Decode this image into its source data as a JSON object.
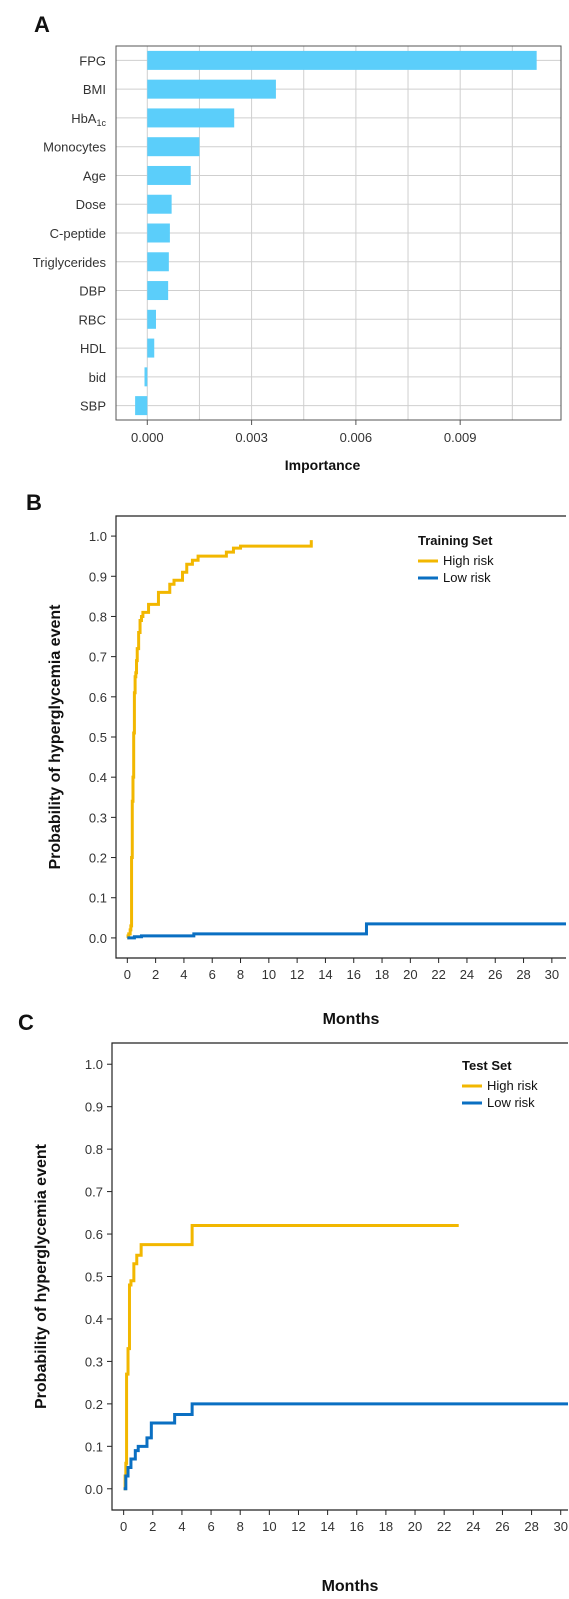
{
  "colors": {
    "bar": "#5BCEFA",
    "high_risk": "#F2B700",
    "low_risk": "#0A6FC2",
    "grid": "#cfcfcf",
    "axis": "#222222"
  },
  "chart_data": [
    {
      "panel": "A",
      "type": "bar",
      "orientation": "horizontal",
      "categories": [
        "FPG",
        "BMI",
        "HbA1c",
        "Monocytes",
        "Age",
        "Dose",
        "C-peptide",
        "Triglycerides",
        "DBP",
        "RBC",
        "HDL",
        "bid",
        "SBP"
      ],
      "category_labels": [
        {
          "main": "FPG",
          "sub": ""
        },
        {
          "main": "BMI",
          "sub": ""
        },
        {
          "main": "HbA",
          "sub": "1c"
        },
        {
          "main": "Monocytes",
          "sub": ""
        },
        {
          "main": "Age",
          "sub": ""
        },
        {
          "main": "Dose",
          "sub": ""
        },
        {
          "main": "C-peptide",
          "sub": ""
        },
        {
          "main": "Triglycerides",
          "sub": ""
        },
        {
          "main": "DBP",
          "sub": ""
        },
        {
          "main": "RBC",
          "sub": ""
        },
        {
          "main": "HDL",
          "sub": ""
        },
        {
          "main": "bid",
          "sub": ""
        },
        {
          "main": "SBP",
          "sub": ""
        }
      ],
      "values": [
        0.0112,
        0.0037,
        0.0025,
        0.0015,
        0.00125,
        0.0007,
        0.00065,
        0.00062,
        0.0006,
        0.00025,
        0.0002,
        -8e-05,
        -0.00035
      ],
      "xlabel": "Importance",
      "ylabel": "",
      "xlim": [
        -0.0009,
        0.0119
      ],
      "xticks": [
        0.0,
        0.003,
        0.006,
        0.009
      ],
      "xtick_labels": [
        "0.000",
        "0.003",
        "0.006",
        "0.009"
      ],
      "xgrid": [
        0.0,
        0.0015,
        0.003,
        0.0045,
        0.006,
        0.0075,
        0.009,
        0.0105
      ],
      "grid": true,
      "legend": "none"
    },
    {
      "panel": "B",
      "type": "line",
      "step": true,
      "xlabel": "Months",
      "ylabel": "Probability of hyperglycemia event",
      "xlim": [
        -0.8,
        31
      ],
      "ylim": [
        -0.05,
        1.05
      ],
      "xticks": [
        0,
        2,
        4,
        6,
        8,
        10,
        12,
        14,
        16,
        18,
        20,
        22,
        24,
        26,
        28,
        30
      ],
      "yticks": [
        0.0,
        0.1,
        0.2,
        0.3,
        0.4,
        0.5,
        0.6,
        0.7,
        0.8,
        0.9,
        1.0
      ],
      "ytick_labels": [
        "0.0",
        "0.1",
        "0.2",
        "0.3",
        "0.4",
        "0.5",
        "0.6",
        "0.7",
        "0.8",
        "0.9",
        "1.0"
      ],
      "grid": false,
      "legend_title": "Training Set",
      "legend": "top-right",
      "series": [
        {
          "name": "High risk",
          "x": [
            0,
            0.05,
            0.1,
            0.2,
            0.25,
            0.3,
            0.35,
            0.4,
            0.45,
            0.5,
            0.55,
            0.6,
            0.65,
            0.7,
            0.8,
            0.9,
            1.0,
            1.1,
            1.3,
            1.5,
            1.8,
            2.2,
            2.6,
            3.0,
            3.3,
            3.6,
            3.9,
            4.2,
            4.6,
            5.0,
            5.5,
            6.0,
            6.5,
            7.0,
            7.5,
            8.0,
            9.0,
            11.0,
            12.5,
            13.0
          ],
          "y": [
            0.0,
            0.005,
            0.01,
            0.02,
            0.03,
            0.2,
            0.34,
            0.4,
            0.51,
            0.61,
            0.65,
            0.66,
            0.69,
            0.72,
            0.76,
            0.79,
            0.8,
            0.81,
            0.81,
            0.83,
            0.83,
            0.86,
            0.86,
            0.88,
            0.89,
            0.89,
            0.91,
            0.93,
            0.94,
            0.95,
            0.95,
            0.95,
            0.95,
            0.96,
            0.97,
            0.975,
            0.975,
            0.975,
            0.975,
            0.99
          ]
        },
        {
          "name": "Low risk",
          "x": [
            0,
            0.5,
            1.0,
            4.7,
            8.0,
            16.9,
            20,
            31
          ],
          "y": [
            0.0,
            0.003,
            0.005,
            0.01,
            0.01,
            0.035,
            0.035,
            0.035
          ]
        }
      ]
    },
    {
      "panel": "C",
      "type": "line",
      "step": true,
      "xlabel": "Months",
      "ylabel": "Probability of hyperglycemia event",
      "xlim": [
        -0.8,
        30.5
      ],
      "ylim": [
        -0.05,
        1.05
      ],
      "xticks": [
        0,
        2,
        4,
        6,
        8,
        10,
        12,
        14,
        16,
        18,
        20,
        22,
        24,
        26,
        28,
        30
      ],
      "yticks": [
        0.0,
        0.1,
        0.2,
        0.3,
        0.4,
        0.5,
        0.6,
        0.7,
        0.8,
        0.9,
        1.0
      ],
      "ytick_labels": [
        "0.0",
        "0.1",
        "0.2",
        "0.3",
        "0.4",
        "0.5",
        "0.6",
        "0.7",
        "0.8",
        "0.9",
        "1.0"
      ],
      "grid": false,
      "legend_title": "Test Set",
      "legend": "top-right",
      "series": [
        {
          "name": "High risk",
          "x": [
            0,
            0.1,
            0.15,
            0.2,
            0.3,
            0.4,
            0.5,
            0.7,
            0.9,
            1.2,
            1.6,
            2.0,
            4.7,
            6.0,
            23.0
          ],
          "y": [
            0.0,
            0.03,
            0.06,
            0.27,
            0.33,
            0.48,
            0.49,
            0.53,
            0.55,
            0.575,
            0.575,
            0.575,
            0.62,
            0.62,
            0.62
          ]
        },
        {
          "name": "Low risk",
          "x": [
            0,
            0.15,
            0.3,
            0.5,
            0.8,
            1.0,
            1.3,
            1.6,
            1.9,
            2.3,
            3.5,
            4.7,
            6.0,
            30.5
          ],
          "y": [
            0.0,
            0.03,
            0.05,
            0.07,
            0.09,
            0.1,
            0.1,
            0.12,
            0.155,
            0.155,
            0.175,
            0.2,
            0.2,
            0.2
          ]
        }
      ]
    }
  ]
}
